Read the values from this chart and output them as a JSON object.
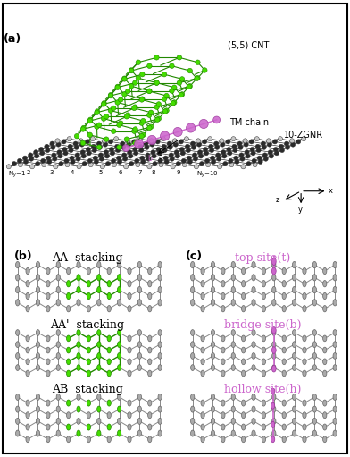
{
  "title_a": "(a)",
  "title_b": "(b)",
  "title_c": "(c)",
  "cnt_label": "(5,5) CNT",
  "tm_label": "TM chain",
  "zgnr_label": "10-ZGNR",
  "carbon_color": "#2a2a2a",
  "carbon_edge_color": "#cccccc",
  "green_bond_color": "#228800",
  "green_atom_color": "#44dd00",
  "purple_color": "#cc66cc",
  "purple_edge": "#993399",
  "bg_color": "#ffffff",
  "gray_atom_color": "#aaaaaa",
  "gray_bond_color": "#888888",
  "bond_color": "#333333"
}
